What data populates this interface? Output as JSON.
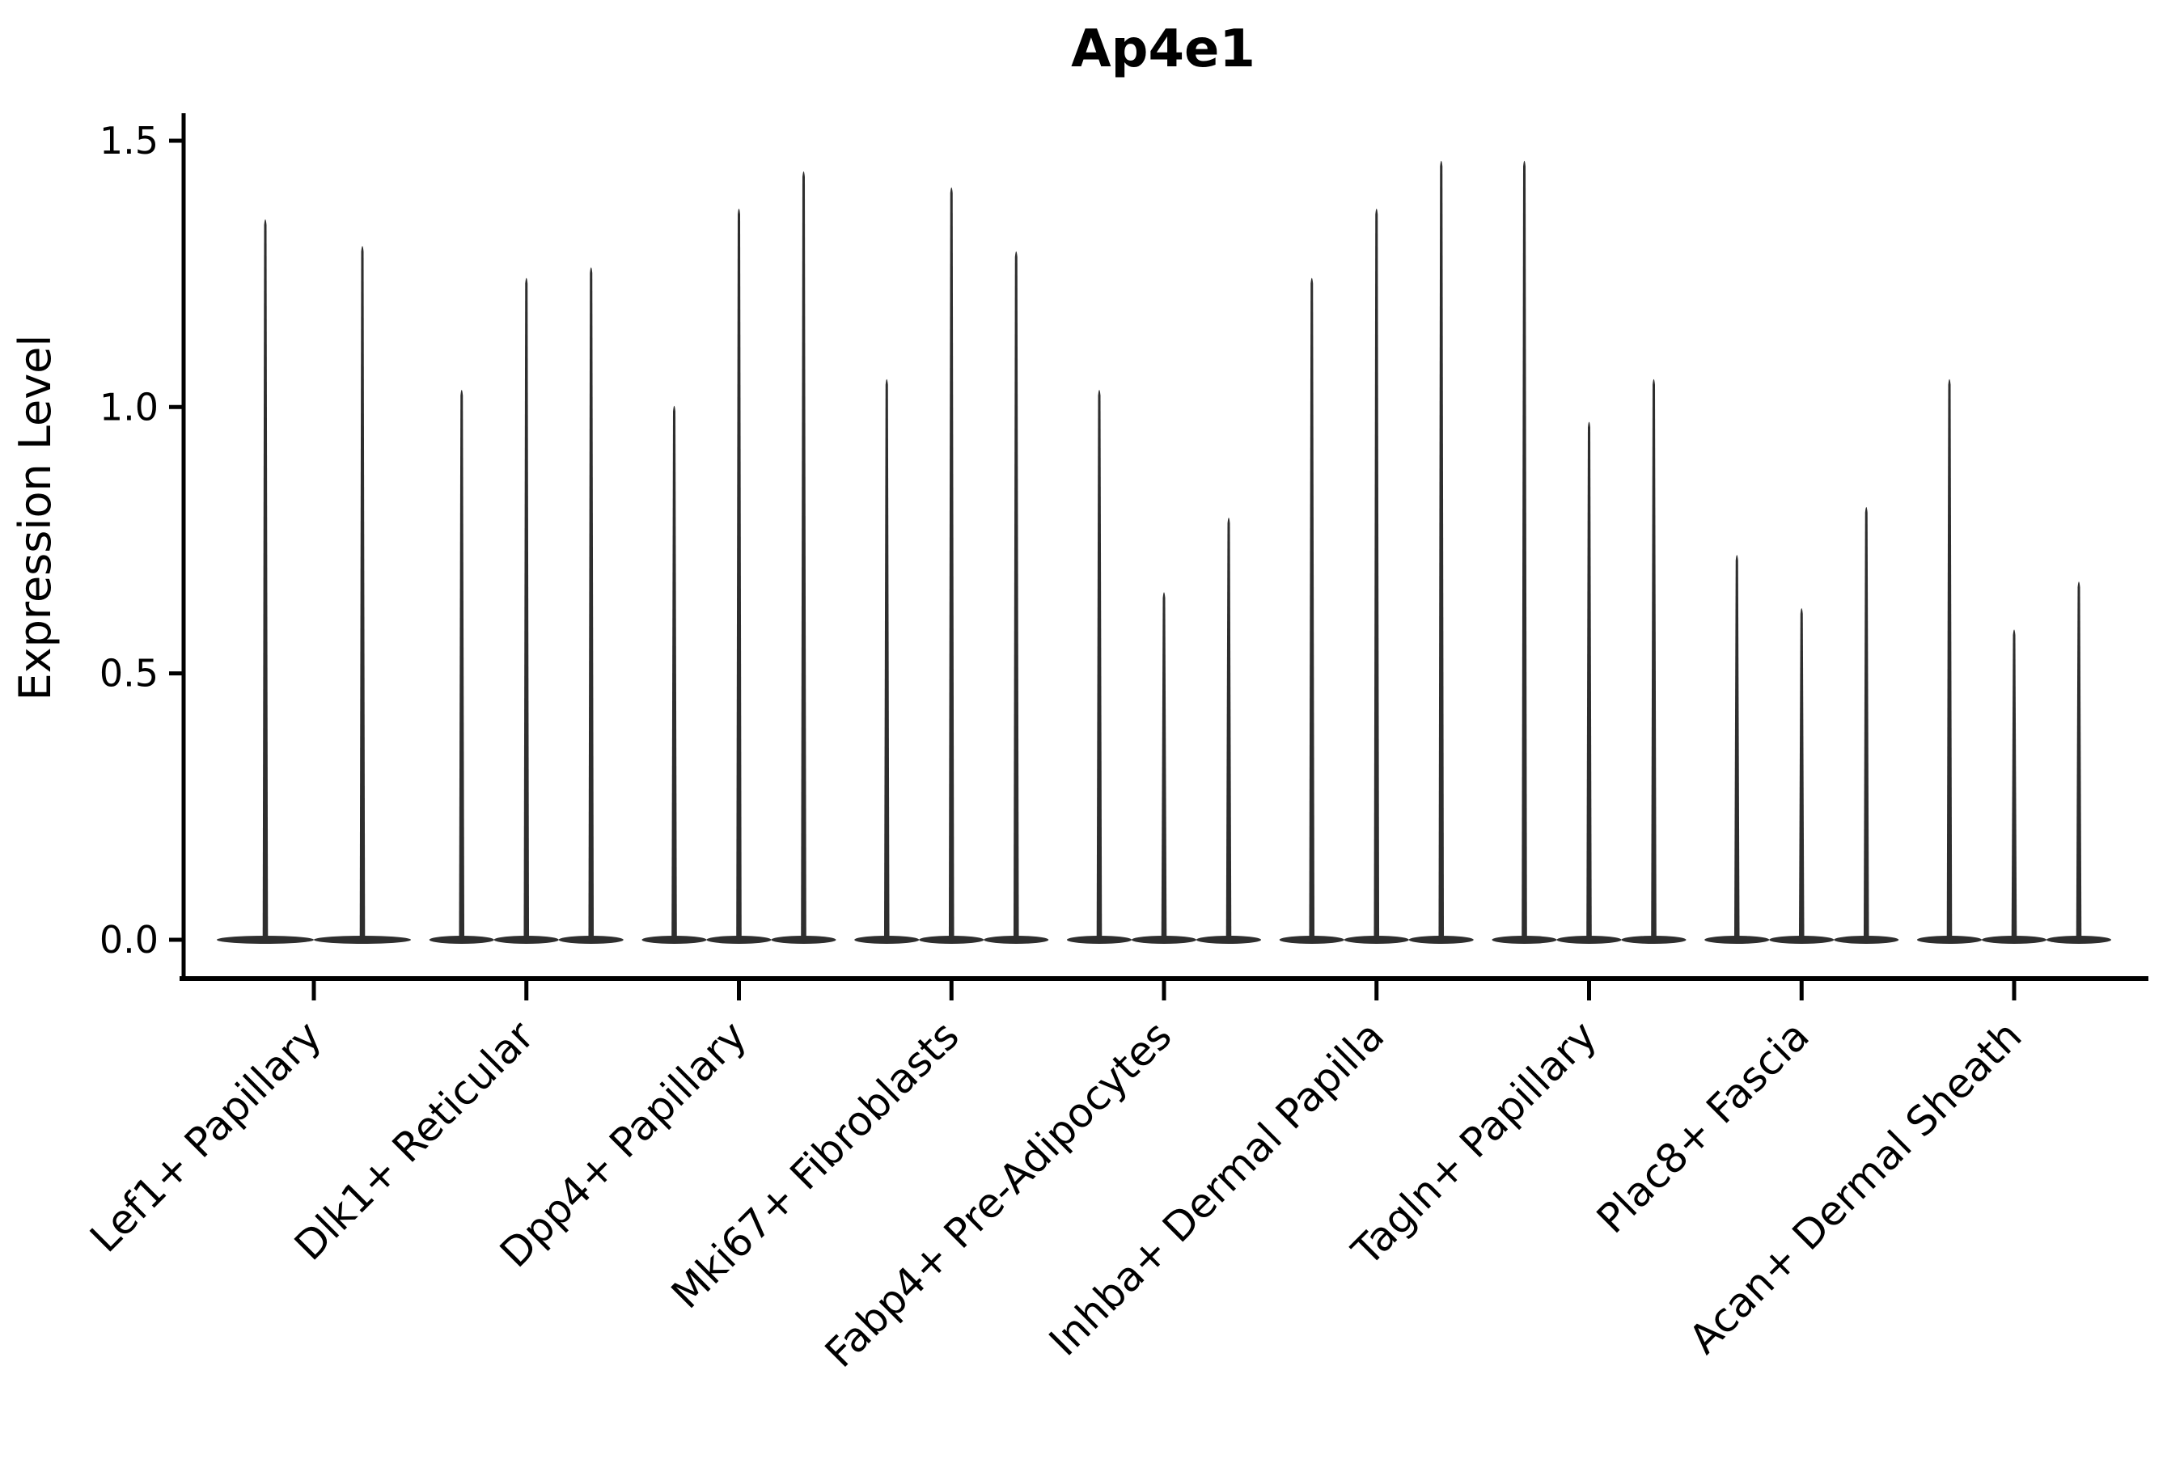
{
  "figure": {
    "background": "#ffffff",
    "violin_color": "#2e2e2e",
    "axis_color": "#000000"
  },
  "chart_data": {
    "type": "violin",
    "title": "Ap4e1",
    "xlabel": "",
    "ylabel": "Expression Level",
    "ylim": [
      0.0,
      1.5
    ],
    "yticks": [
      0.0,
      0.5,
      1.0,
      1.5
    ],
    "ytick_labels": [
      "0.0",
      "0.5",
      "1.0",
      "1.5"
    ],
    "grid": false,
    "legend": "none",
    "categories": [
      "Lef1+ Papillary",
      "Dlk1+ Reticular",
      "Dpp4+ Papillary",
      "Mki67+ Fibroblasts",
      "Fabp4+ Pre-Adipocytes",
      "Inhba+ Dermal Papilla",
      "Tagln+ Papillary",
      "Plac8+ Fascia",
      "Acan+ Dermal Sheath"
    ],
    "groups": [
      {
        "label": "Lef1+ Papillary",
        "violin_maxima": [
          1.36,
          1.31
        ]
      },
      {
        "label": "Dlk1+ Reticular",
        "violin_maxima": [
          1.04,
          1.25,
          1.27
        ]
      },
      {
        "label": "Dpp4+ Papillary",
        "violin_maxima": [
          1.01,
          1.38,
          1.45
        ]
      },
      {
        "label": "Mki67+ Fibroblasts",
        "violin_maxima": [
          1.06,
          1.42,
          1.3
        ]
      },
      {
        "label": "Fabp4+ Pre-Adipocytes",
        "violin_maxima": [
          1.04,
          0.66,
          0.8
        ]
      },
      {
        "label": "Inhba+ Dermal Papilla",
        "violin_maxima": [
          1.25,
          1.38,
          1.47
        ]
      },
      {
        "label": "Tagln+ Papillary",
        "violin_maxima": [
          1.47,
          0.98,
          1.06
        ]
      },
      {
        "label": "Plac8+ Fascia",
        "violin_maxima": [
          0.73,
          0.63,
          0.82
        ]
      },
      {
        "label": "Acan+ Dermal Sheath",
        "violin_maxima": [
          1.06,
          0.59,
          0.68
        ]
      }
    ],
    "description": "Stacked-at-zero violin plot: each cell-type group shows 2-3 thin spike violins whose bases sit flat at expression 0 and whose spikes reach the maximum expression value."
  }
}
